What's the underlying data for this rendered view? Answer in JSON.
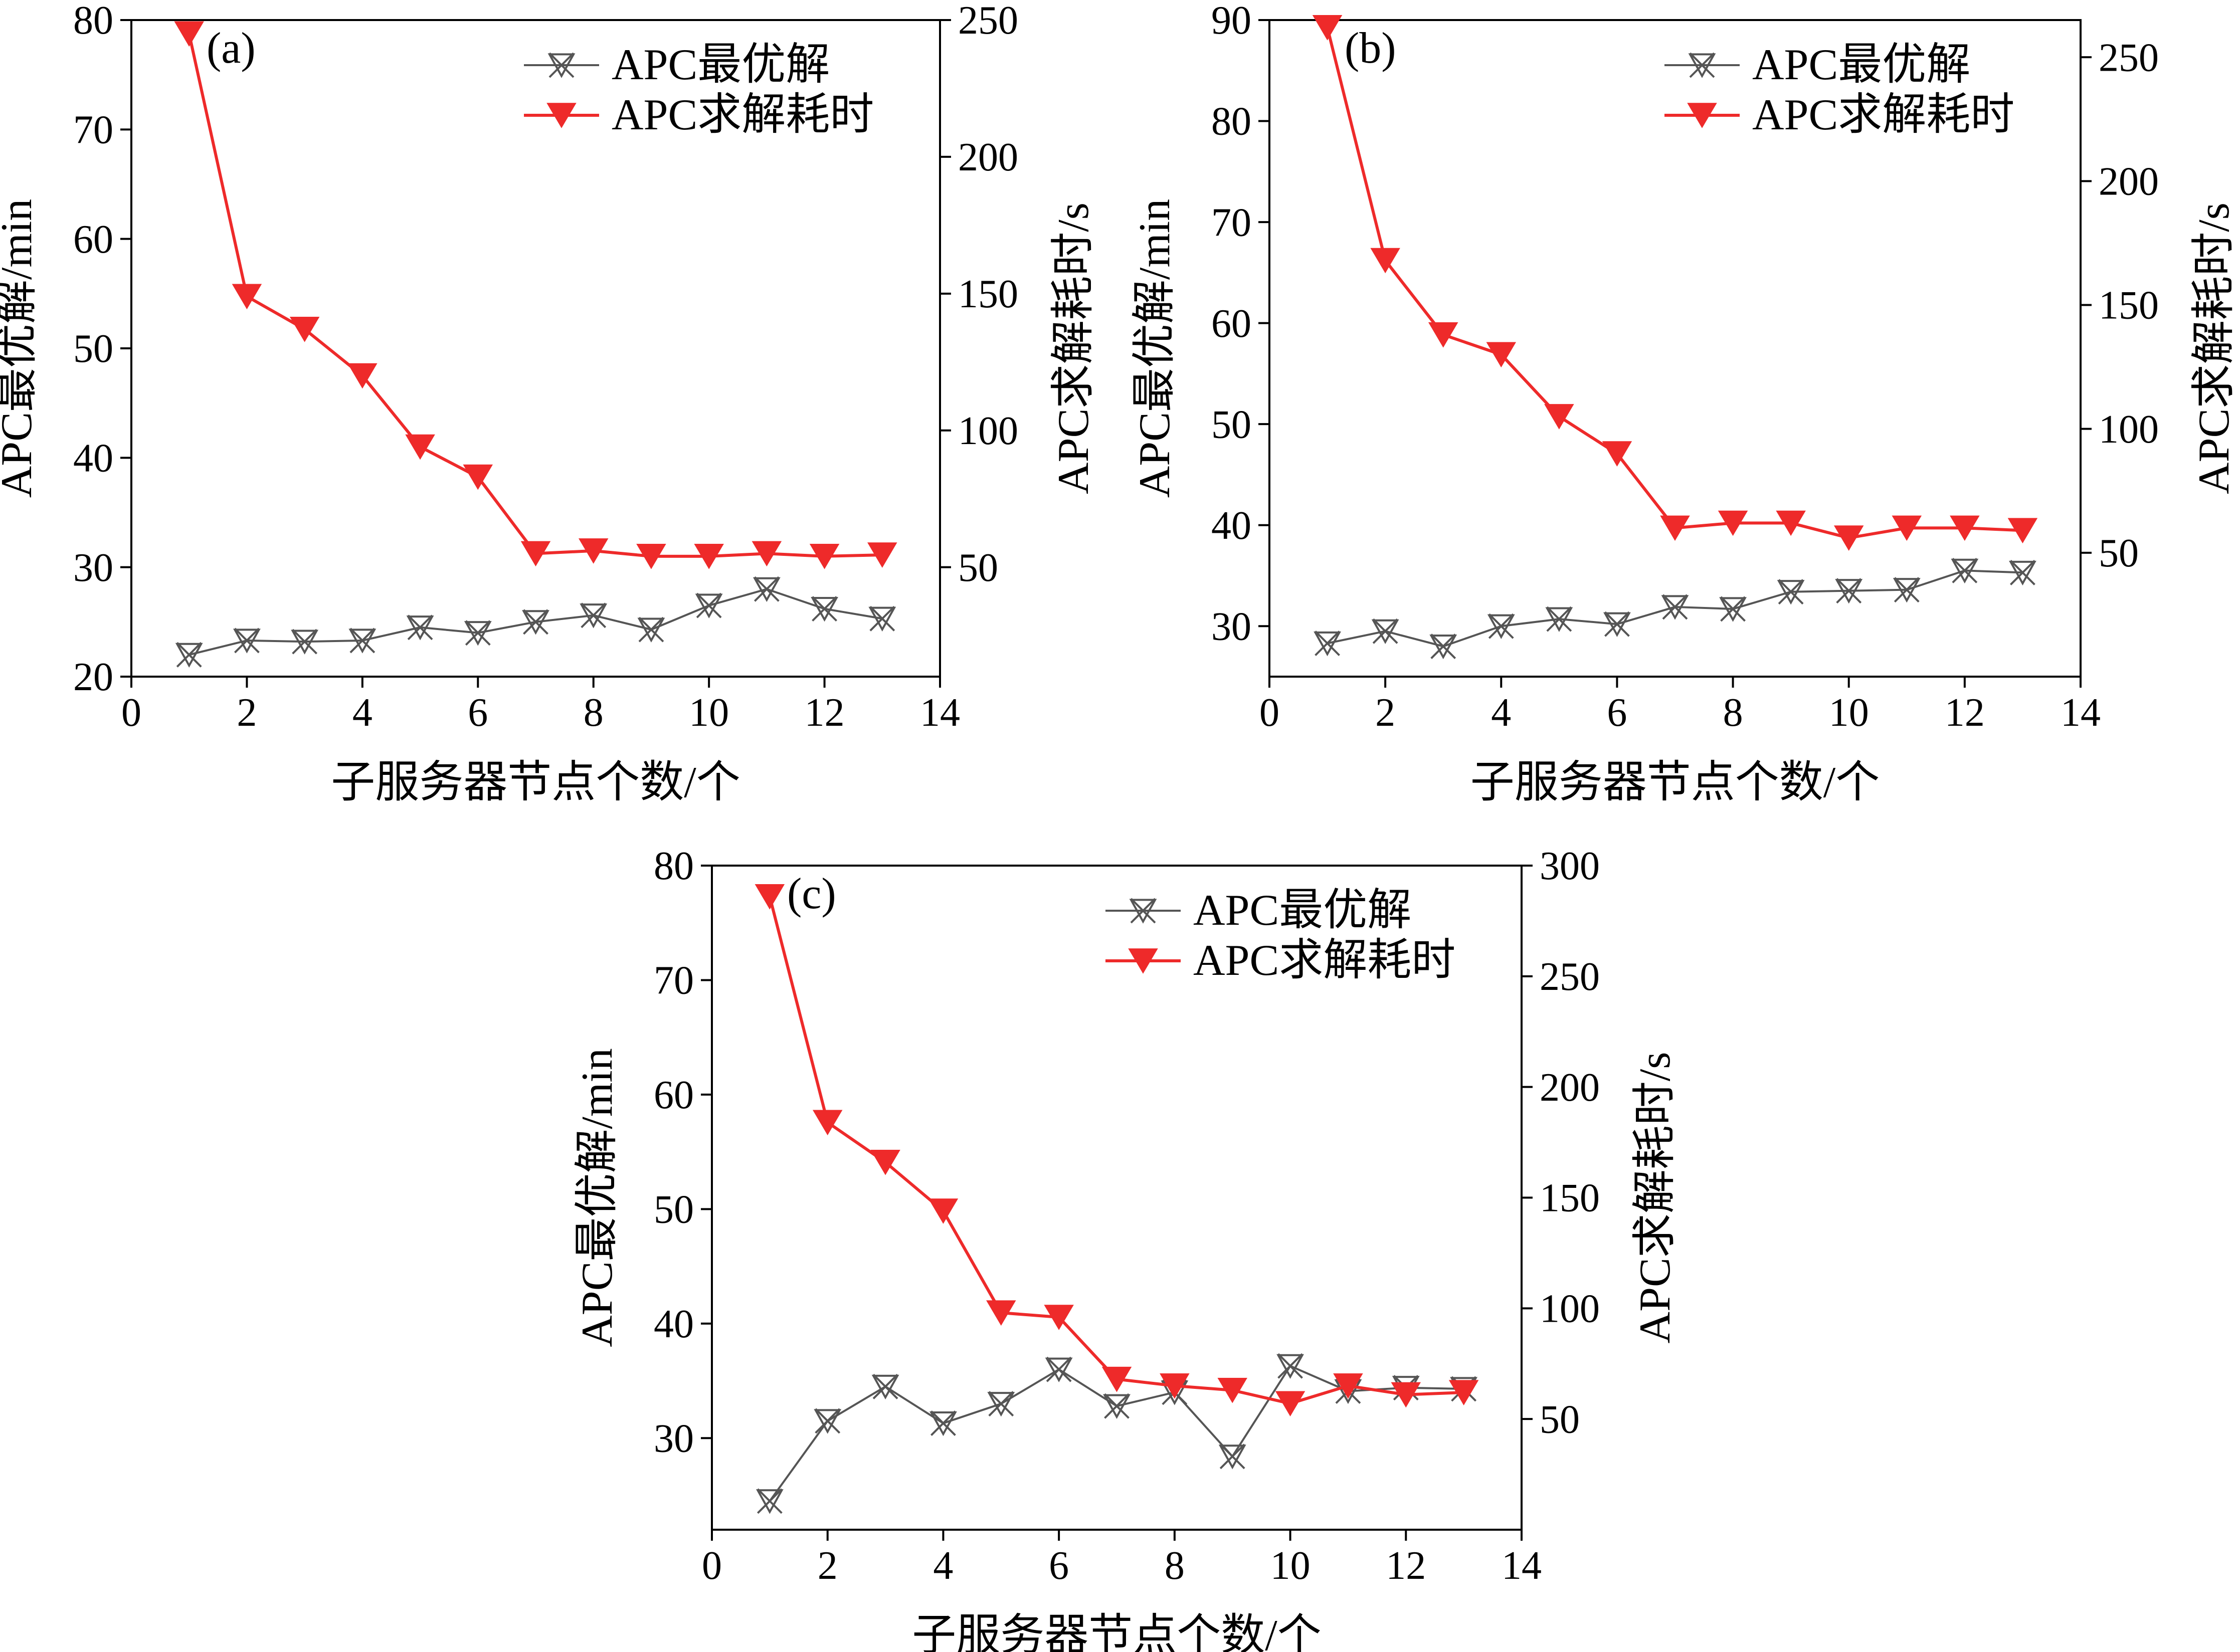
{
  "chart_data": [
    {
      "type": "line",
      "panel_label": "(a)",
      "x": [
        1,
        2,
        3,
        4,
        5,
        6,
        7,
        8,
        9,
        10,
        11,
        12,
        13
      ],
      "xlabel": "子服务器节点个数/个",
      "xlim": [
        0,
        14
      ],
      "xticks": [
        0,
        2,
        4,
        6,
        8,
        10,
        12,
        14
      ],
      "ylabel": "APC最优解/min",
      "ylim": [
        20,
        80
      ],
      "yticks": [
        20,
        30,
        40,
        50,
        60,
        70,
        80
      ],
      "y2label": "APC求解耗时/s",
      "y2lim": [
        10,
        250
      ],
      "y2ticks": [
        50,
        100,
        150,
        200,
        250
      ],
      "legend_position": "top-right",
      "series": [
        {
          "name": "APC最优解",
          "axis": "left",
          "color": "#555555",
          "marker": "x-triangle",
          "values": [
            22.0,
            23.3,
            23.2,
            23.3,
            24.5,
            24.0,
            25.0,
            25.6,
            24.3,
            26.5,
            28.0,
            26.2,
            25.3
          ]
        },
        {
          "name": "APC求解耗时",
          "axis": "right",
          "color": "#ee2a2a",
          "marker": "triangle-down",
          "values": [
            245,
            149,
            137,
            120,
            94,
            83,
            55,
            56,
            54,
            54,
            55,
            54,
            54.5
          ]
        }
      ]
    },
    {
      "type": "line",
      "panel_label": "(b)",
      "x": [
        1,
        2,
        3,
        4,
        5,
        6,
        7,
        8,
        9,
        10,
        11,
        12,
        13
      ],
      "xlabel": "子服务器节点个数/个",
      "xlim": [
        0,
        14
      ],
      "xticks": [
        0,
        2,
        4,
        6,
        8,
        10,
        12,
        14
      ],
      "ylabel": "APC最优解/min",
      "ylim": [
        25,
        90
      ],
      "yticks": [
        30,
        40,
        50,
        60,
        70,
        80,
        90
      ],
      "y2label": "APC求解耗时/s",
      "y2lim": [
        0,
        265
      ],
      "y2ticks": [
        50,
        100,
        150,
        200,
        250
      ],
      "legend_position": "top-right",
      "series": [
        {
          "name": "APC最优解",
          "axis": "left",
          "color": "#555555",
          "marker": "x-triangle",
          "values": [
            28.3,
            29.5,
            28.0,
            30.0,
            30.7,
            30.2,
            31.9,
            31.7,
            33.4,
            33.5,
            33.6,
            35.5,
            35.3
          ]
        },
        {
          "name": "APC求解耗时",
          "axis": "right",
          "color": "#ee2a2a",
          "marker": "triangle-down",
          "values": [
            262,
            168,
            138,
            130,
            105,
            90,
            60,
            62,
            62,
            56,
            60,
            60,
            59
          ]
        }
      ]
    },
    {
      "type": "line",
      "panel_label": "(c)",
      "x": [
        1,
        2,
        3,
        4,
        5,
        6,
        7,
        8,
        9,
        10,
        11,
        12,
        13
      ],
      "xlabel": "子服务器节点个数/个",
      "xlim": [
        0,
        14
      ],
      "xticks": [
        0,
        2,
        4,
        6,
        8,
        10,
        12,
        14
      ],
      "ylabel": "APC最优解/min",
      "ylim": [
        22,
        80
      ],
      "yticks": [
        30,
        40,
        50,
        60,
        70,
        80
      ],
      "y2label": "APC求解耗时/s",
      "y2lim": [
        0,
        300
      ],
      "y2ticks": [
        50,
        100,
        150,
        200,
        250,
        300
      ],
      "legend_position": "top-right",
      "series": [
        {
          "name": "APC最优解",
          "axis": "left",
          "color": "#555555",
          "marker": "x-triangle",
          "values": [
            24.5,
            31.5,
            34.5,
            31.3,
            33.0,
            36.0,
            32.8,
            34.0,
            28.4,
            36.3,
            34.1,
            34.4,
            34.3
          ]
        },
        {
          "name": "APC求解耗时",
          "axis": "right",
          "color": "#ee2a2a",
          "marker": "triangle-down",
          "values": [
            286,
            184,
            166,
            144,
            98,
            96,
            68,
            65,
            63,
            57,
            65,
            61,
            62
          ]
        }
      ]
    }
  ]
}
